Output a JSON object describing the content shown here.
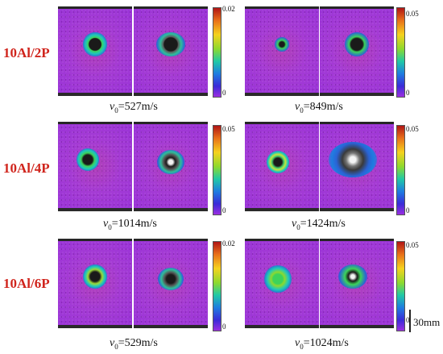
{
  "row_labels": [
    "10Al/2P",
    "10Al/4P",
    "10Al/6P"
  ],
  "speeds": {
    "r1_left": {
      "var": "v",
      "sub": "0",
      "value": "=527m/s"
    },
    "r1_right": {
      "var": "v",
      "sub": "0",
      "value": "=849m/s"
    },
    "r2_left": {
      "var": "v",
      "sub": "0",
      "value": "=1014m/s"
    },
    "r2_right": {
      "var": "v",
      "sub": "0",
      "value": "=1424m/s"
    },
    "r3_left": {
      "var": "v",
      "sub": "0",
      "value": "=529m/s"
    },
    "r3_right": {
      "var": "v",
      "sub": "0",
      "value": "=1024m/s"
    }
  },
  "colorbars": {
    "r1_left": {
      "max": "0.02",
      "min": "0"
    },
    "r1_right": {
      "max": "0.05",
      "min": "0"
    },
    "r2_left": {
      "max": "0.05",
      "min": "0"
    },
    "r2_right": {
      "max": "0.05",
      "min": "0"
    },
    "r3_left": {
      "max": "0.02",
      "min": "0"
    },
    "r3_right": {
      "max": "0.05",
      "min": "0"
    }
  },
  "scale_bar": "30mm",
  "colors": {
    "row_label": "#d0241c",
    "background_strain": "#a53bd4"
  }
}
